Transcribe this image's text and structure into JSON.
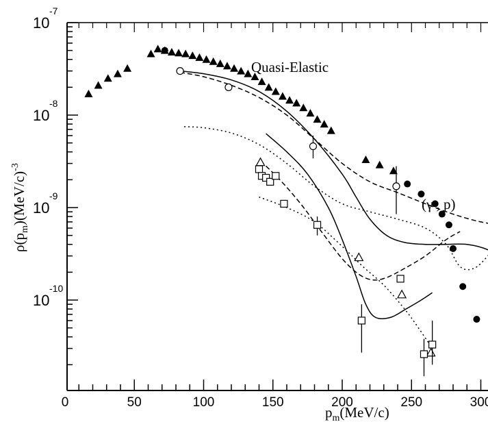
{
  "chart_data": {
    "type": "scatter",
    "title": "",
    "xlabel": "p_m(MeV/c)",
    "xlabel_main": "p",
    "xlabel_sub": "m",
    "xlabel_rest": "(MeV/c)",
    "ylabel": "ρ(p_m)(MeV/c)^-3",
    "ylabel_parts": {
      "pre": "ρ(p",
      "sub": "m",
      "mid": ")(MeV/c)",
      "sup": "-3"
    },
    "xlim": [
      0,
      320
    ],
    "ylim": [
      2e-11,
      1e-07
    ],
    "yscale": "log",
    "grid": false,
    "legend": "none",
    "x_ticks": [
      "0",
      "50",
      "100",
      "150",
      "200",
      "250",
      "300"
    ],
    "y_ticks": [
      {
        "base": "10",
        "exp": "-7"
      },
      {
        "base": "10",
        "exp": "-8"
      },
      {
        "base": "10",
        "exp": "-9"
      },
      {
        "base": "10",
        "exp": "-10"
      }
    ],
    "annotations": [
      "Quasi-Elastic",
      "(γ , p)"
    ],
    "series": [
      {
        "marker": "filled-triangle",
        "x": [
          17,
          24,
          31,
          38,
          45,
          62,
          67,
          72,
          77,
          82,
          87,
          92,
          97,
          102,
          107,
          112,
          117,
          122,
          127,
          132,
          137,
          142,
          147,
          152,
          157,
          162,
          167,
          172,
          177,
          182,
          187,
          192,
          217,
          227,
          237
        ],
        "y": [
          1.7e-08,
          2.1e-08,
          2.5e-08,
          2.8e-08,
          3.2e-08,
          4.6e-08,
          5.2e-08,
          5e-08,
          4.8e-08,
          4.7e-08,
          4.6e-08,
          4.4e-08,
          4.2e-08,
          4e-08,
          3.8e-08,
          3.6e-08,
          3.4e-08,
          3.2e-08,
          3e-08,
          2.8e-08,
          2.6e-08,
          2.3e-08,
          2e-08,
          1.8e-08,
          1.6e-08,
          1.45e-08,
          1.35e-08,
          1.2e-08,
          1.05e-08,
          9e-09,
          8e-09,
          6.8e-09,
          3.3e-09,
          2.9e-09,
          2.5e-09
        ]
      },
      {
        "marker": "filled-circle",
        "x": [
          72,
          247,
          257,
          267,
          272,
          277,
          280,
          287,
          297
        ],
        "y": [
          5e-08,
          1.8e-09,
          1.4e-09,
          1.1e-09,
          8.5e-10,
          6.5e-10,
          3.6e-10,
          1.4e-10,
          6.2e-11
        ]
      },
      {
        "marker": "open-circle",
        "x": [
          83,
          118,
          179,
          239
        ],
        "y": [
          3e-08,
          2e-08,
          4.6e-09,
          1.7e-09
        ],
        "err_low": [
          null,
          null,
          3.4e-09,
          8.5e-10
        ],
        "err_high": [
          null,
          null,
          6e-09,
          2.8e-09
        ]
      },
      {
        "marker": "open-triangle",
        "x": [
          141,
          212,
          243,
          264
        ],
        "y": [
          3.1e-09,
          2.9e-10,
          1.15e-10,
          2.7e-11
        ]
      },
      {
        "marker": "open-square",
        "x": [
          140,
          142,
          145,
          148,
          152,
          158,
          182,
          214,
          242,
          259,
          265
        ],
        "y": [
          2.6e-09,
          2.2e-09,
          2.1e-09,
          1.9e-09,
          2.2e-09,
          1.1e-09,
          6.5e-10,
          6e-11,
          1.7e-10,
          2.6e-11,
          3.3e-11
        ],
        "err_low": [
          null,
          null,
          null,
          null,
          null,
          null,
          5e-10,
          2.7e-11,
          null,
          1.5e-11,
          2e-11
        ],
        "err_high": [
          null,
          null,
          null,
          null,
          null,
          null,
          8e-10,
          9e-11,
          null,
          3.8e-11,
          6e-11
        ]
      }
    ],
    "curves": [
      {
        "style": "solid",
        "x": [
          83,
          100,
          120,
          140,
          160,
          180,
          200,
          210,
          220,
          232,
          245,
          260,
          275,
          290,
          305,
          320
        ],
        "y": [
          3e-08,
          2.8e-08,
          2.4e-08,
          1.8e-08,
          1.1e-08,
          5.5e-09,
          2.3e-09,
          1.3e-09,
          7.5e-10,
          5e-10,
          4.2e-10,
          4e-10,
          4e-10,
          4e-10,
          3.5e-10,
          2.5e-10
        ]
      },
      {
        "style": "dashed",
        "x": [
          83,
          100,
          120,
          140,
          160,
          180,
          200,
          220,
          240,
          260,
          280,
          300,
          320
        ],
        "y": [
          2.9e-08,
          2.6e-08,
          2.1e-08,
          1.55e-08,
          1e-08,
          5.5e-09,
          3e-09,
          1.9e-09,
          1.45e-09,
          1.1e-09,
          8.5e-10,
          7e-10,
          6.3e-10
        ]
      },
      {
        "style": "solid",
        "x": [
          145,
          160,
          175,
          190,
          200,
          210,
          217,
          224,
          235,
          246,
          257,
          265
        ],
        "y": [
          6.3e-09,
          4e-09,
          2.3e-09,
          1e-09,
          4.5e-10,
          1.8e-10,
          9e-11,
          6.5e-11,
          6.5e-11,
          8e-11,
          1e-10,
          1.2e-10
        ]
      },
      {
        "style": "dashed",
        "x": [
          141,
          155,
          170,
          185,
          200,
          212,
          222,
          232,
          245,
          260,
          275,
          285
        ],
        "y": [
          3.2e-09,
          2e-09,
          1.1e-09,
          5.5e-10,
          2.8e-10,
          1.9e-10,
          1.65e-10,
          1.75e-10,
          2.2e-10,
          3e-10,
          4.5e-10,
          5.5e-10
        ]
      },
      {
        "style": "dotted",
        "x": [
          86,
          100,
          120,
          140,
          160,
          180,
          200,
          220,
          240,
          260,
          275,
          285,
          295,
          305,
          315,
          320
        ],
        "y": [
          7.5e-09,
          7.3e-09,
          6.4e-09,
          4.8e-09,
          3e-09,
          1.7e-09,
          1.1e-09,
          9e-10,
          7.5e-10,
          6e-10,
          4e-10,
          2.3e-10,
          2.2e-10,
          3e-10,
          4.8e-10,
          6.5e-10
        ]
      },
      {
        "style": "dotted",
        "x": [
          140,
          160,
          180,
          200,
          215,
          230,
          245,
          255,
          265
        ],
        "y": [
          1.3e-09,
          1e-09,
          7e-10,
          3.8e-10,
          2.3e-10,
          1.45e-10,
          8e-11,
          5e-11,
          3e-11
        ]
      }
    ]
  }
}
